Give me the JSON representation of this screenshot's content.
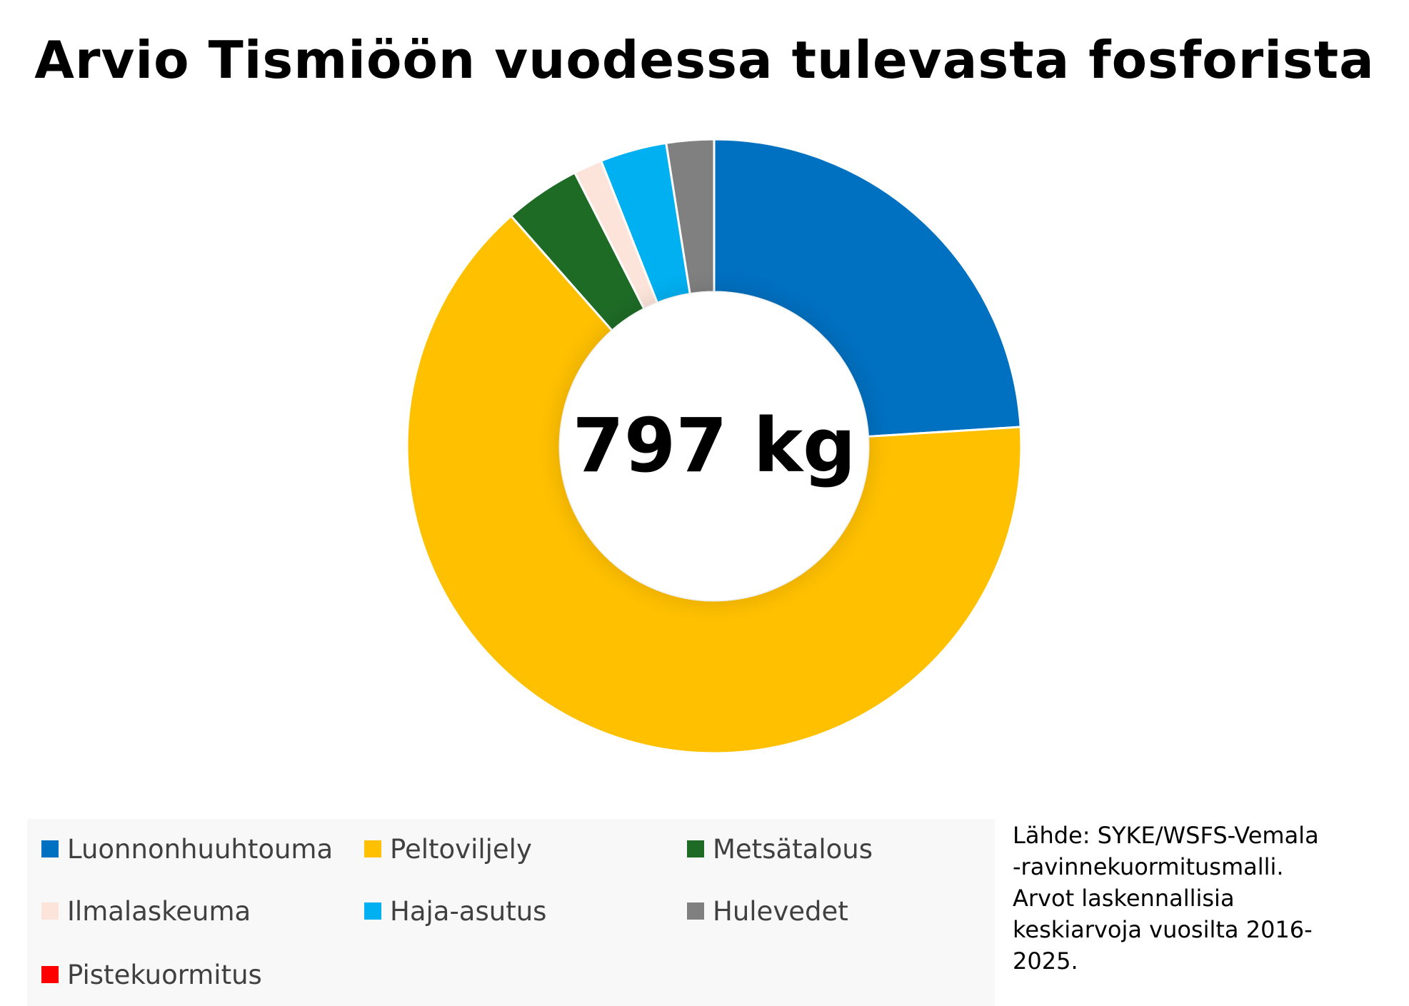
{
  "chart_data": {
    "type": "donut",
    "title": "Arvio Tismiöön vuodessa tulevasta fosforista",
    "center_label": "797 kg",
    "slices": [
      {
        "label": "Luonnonhuuhtouma",
        "value": 24.0,
        "color": "#0070C0"
      },
      {
        "label": "Peltoviljely",
        "value": 64.5,
        "color": "#FFC000"
      },
      {
        "label": "Metsätalous",
        "value": 4.0,
        "color": "#1E6B26"
      },
      {
        "label": "Ilmalaskeuma",
        "value": 1.5,
        "color": "#FCE4DA"
      },
      {
        "label": "Haja-asutus",
        "value": 3.5,
        "color": "#00B0F0"
      },
      {
        "label": "Hulevedet",
        "value": 2.5,
        "color": "#808080"
      },
      {
        "label": "Pistekuormitus",
        "value": 0.0,
        "color": "#FF0000"
      }
    ],
    "legend_position": "bottom"
  },
  "source_note": [
    "Lähde: SYKE/WSFS-Vemala",
    "-ravinnekuormitusmalli.",
    "Arvot laskennallisia",
    "keskiarvoja vuosilta 2016-",
    "2025."
  ]
}
